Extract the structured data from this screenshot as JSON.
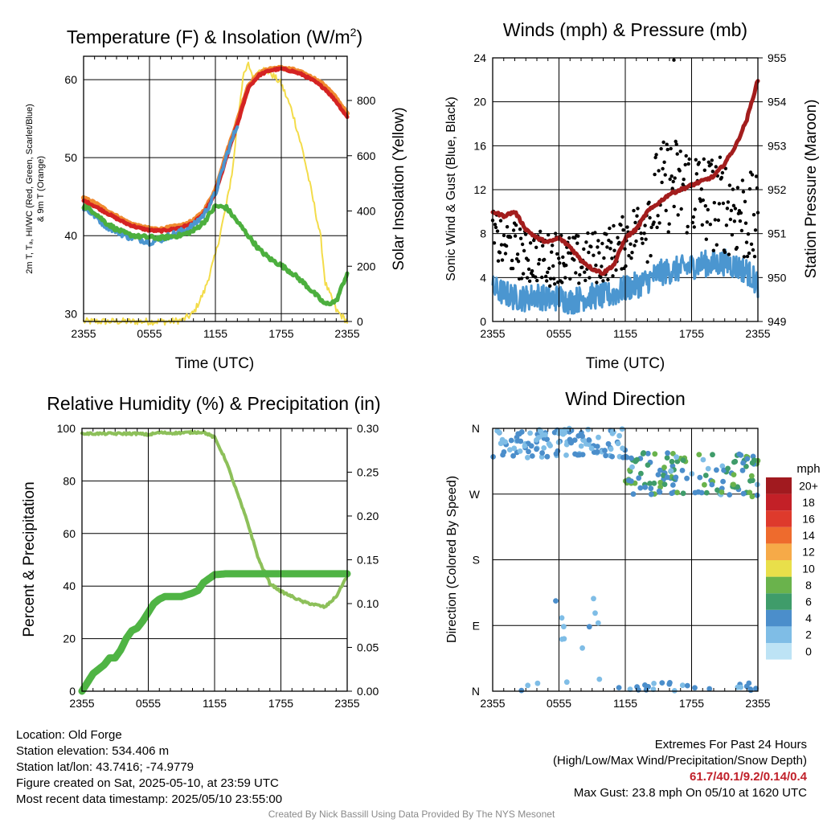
{
  "chart_data": [
    {
      "id": "temp",
      "type": "line",
      "title": "Temperature (F) & Insolation (W/m²)",
      "title_main": "Temperature (F) & Insolation (W/m",
      "title_sup": "2",
      "title_end": ")",
      "xlabel": "Time (UTC)",
      "ylabel_lines": [
        "2m T, Tₐ, HI/WC (Red, Green, Scarlet/Blue)",
        "& 9m T (Orange)"
      ],
      "ylabel_right": "Solar Insolation (Yellow)",
      "xticks": [
        "2355",
        "0555",
        "1155",
        "1755",
        "2355"
      ],
      "yticks": [
        30,
        40,
        50,
        60
      ],
      "yticks_right": [
        0,
        200,
        400,
        600,
        800
      ],
      "ylim": [
        29,
        63
      ],
      "ylim_right": [
        0,
        960
      ],
      "grid": true,
      "series": [
        {
          "color": "#f08a30",
          "x": [
            0,
            1,
            2,
            3,
            4,
            5,
            6,
            7,
            8,
            9,
            10,
            11,
            12,
            13,
            14,
            15,
            16,
            17,
            18,
            19,
            20,
            21,
            22,
            23,
            24
          ],
          "values": [
            44.8,
            44.2,
            43.3,
            42.5,
            41.7,
            41.2,
            40.9,
            40.8,
            41.1,
            41.3,
            41.9,
            43.2,
            45.8,
            50.4,
            54.6,
            59.2,
            60.8,
            61.4,
            61.5,
            61.3,
            60.8,
            60.1,
            59.2,
            57.6,
            55.6
          ]
        },
        {
          "color": "#d42323",
          "x": [
            0,
            1,
            2,
            3,
            4,
            5,
            6,
            7,
            8,
            9,
            10,
            11,
            12,
            13,
            14,
            15,
            16,
            17,
            18,
            19,
            20,
            21,
            22,
            23,
            24
          ],
          "values": [
            44.5,
            43.8,
            43.0,
            42.2,
            41.5,
            41.0,
            40.7,
            40.6,
            40.8,
            41.1,
            41.6,
            42.9,
            45.4,
            50.0,
            54.3,
            59.0,
            60.6,
            61.2,
            61.4,
            61.1,
            60.6,
            59.8,
            58.8,
            57.2,
            55.2
          ]
        },
        {
          "color": "#4b96d0",
          "x": [
            0,
            1,
            2,
            3,
            4,
            5,
            6,
            7,
            8,
            9,
            10,
            11,
            12,
            13,
            14
          ],
          "values": [
            43.6,
            42.6,
            41.3,
            40.6,
            39.9,
            39.6,
            39.2,
            39.5,
            40.1,
            40.6,
            41.3,
            42.8,
            45.4,
            50.2,
            54.2
          ]
        },
        {
          "color": "#4caf3e",
          "x": [
            0,
            1,
            2,
            3,
            4,
            5,
            6,
            7,
            8,
            9,
            10,
            11,
            12,
            13,
            14,
            15,
            16,
            17,
            18,
            19,
            20,
            21,
            22,
            23,
            24
          ],
          "values": [
            43.8,
            43.0,
            41.7,
            40.8,
            40.2,
            39.9,
            39.8,
            39.7,
            39.9,
            40.1,
            40.6,
            41.8,
            43.8,
            43.6,
            41.8,
            40.0,
            38.2,
            37.0,
            36.2,
            35.2,
            34.0,
            32.6,
            31.2,
            31.6,
            35.2
          ]
        },
        {
          "color": "#f3dc4a",
          "x": [
            0,
            8,
            9,
            10,
            11,
            12,
            13,
            13.6,
            14,
            14.5,
            15,
            15.6,
            16,
            17,
            18,
            19,
            20,
            21,
            21.6,
            22,
            23,
            24
          ],
          "values": [
            0,
            0,
            5,
            30,
            110,
            240,
            420,
            560,
            720,
            880,
            930,
            870,
            920,
            900,
            860,
            760,
            610,
            420,
            300,
            140,
            40,
            0
          ]
        }
      ]
    },
    {
      "id": "wind",
      "type": "line",
      "title": "Winds (mph) & Pressure (mb)",
      "xlabel": "Time (UTC)",
      "ylabel": "Sonic Wind & Gust (Blue, Black)",
      "ylabel_right": "Station Pressure (Maroon)",
      "xticks": [
        "2355",
        "0555",
        "1155",
        "1755",
        "2355"
      ],
      "yticks": [
        0,
        4,
        8,
        12,
        16,
        20,
        24
      ],
      "yticks_right": [
        949,
        950,
        951,
        952,
        953,
        954,
        955
      ],
      "ylim": [
        0,
        24
      ],
      "ylim_right": [
        949,
        955
      ],
      "grid": true,
      "series": [
        {
          "color": "#4b96d0",
          "x": [
            0,
            1,
            2,
            3,
            4,
            5,
            6,
            7,
            8,
            9,
            10,
            11,
            12,
            13,
            14,
            15,
            16,
            17,
            18,
            19,
            20,
            21,
            22,
            23,
            24
          ],
          "values": [
            3.0,
            2.6,
            2.2,
            2.1,
            2.4,
            2.0,
            2.2,
            1.8,
            2.1,
            2.3,
            2.3,
            2.5,
            3.0,
            3.3,
            3.7,
            4.4,
            4.6,
            4.8,
            5.0,
            5.3,
            5.2,
            5.4,
            5.0,
            4.6,
            3.4
          ]
        },
        {
          "color": "#a31d1d",
          "x": [
            0,
            1,
            2,
            3,
            4,
            5,
            6,
            7,
            8,
            9,
            10,
            11,
            12,
            13,
            14,
            15,
            16,
            17,
            18,
            19,
            20,
            21,
            22,
            23,
            24
          ],
          "values": [
            951.5,
            951.4,
            951.5,
            951.1,
            950.9,
            950.8,
            950.9,
            950.7,
            950.4,
            950.2,
            950.1,
            950.3,
            950.9,
            951.1,
            951.5,
            951.7,
            951.9,
            952.0,
            952.1,
            952.2,
            952.3,
            952.6,
            953.0,
            953.6,
            954.5
          ]
        }
      ]
    },
    {
      "id": "rh",
      "type": "line",
      "title": "Relative Humidity (%) & Precipitation (in)",
      "ylabel": "Percent & Precipitation",
      "xticks": [
        "2355",
        "0555",
        "1155",
        "1755",
        "2355"
      ],
      "yticks": [
        0,
        20,
        40,
        60,
        80,
        100
      ],
      "yticks_right": [
        "0.00",
        "0.05",
        "0.10",
        "0.15",
        "0.20",
        "0.25",
        "0.30"
      ],
      "ylim": [
        0,
        100
      ],
      "ylim_right": [
        0,
        0.3
      ],
      "grid": true,
      "series": [
        {
          "color": "#8dc05a",
          "x": [
            0,
            1,
            2,
            3,
            4,
            5,
            6,
            7,
            8,
            9,
            10,
            11,
            12,
            13,
            14,
            15,
            16,
            17,
            18,
            19,
            20,
            21,
            22,
            23,
            24
          ],
          "values": [
            98,
            98,
            98,
            98,
            98,
            98,
            97.6,
            98.4,
            98.2,
            98.3,
            98.5,
            98.6,
            96.5,
            88,
            76,
            64,
            50,
            41,
            38,
            36,
            34,
            33,
            32,
            36,
            44
          ]
        },
        {
          "color": "#4fb444",
          "x": [
            0,
            0.5,
            1,
            1.5,
            2,
            2.5,
            3,
            3.5,
            4,
            4.5,
            5,
            5.5,
            6,
            6.5,
            7,
            7.5,
            8,
            8.5,
            9,
            9.5,
            10,
            10.5,
            11,
            12,
            13,
            14,
            15,
            16,
            17,
            18,
            19,
            20,
            21,
            22,
            23,
            24
          ],
          "values": [
            0,
            0.01,
            0.02,
            0.025,
            0.03,
            0.038,
            0.038,
            0.047,
            0.06,
            0.069,
            0.072,
            0.08,
            0.09,
            0.1,
            0.105,
            0.108,
            0.108,
            0.108,
            0.108,
            0.11,
            0.112,
            0.115,
            0.124,
            0.133,
            0.134,
            0.134,
            0.134,
            0.134,
            0.134,
            0.134,
            0.134,
            0.134,
            0.134,
            0.134,
            0.134,
            0.134
          ]
        }
      ]
    },
    {
      "id": "dir",
      "type": "scatter",
      "title": "Wind Direction",
      "ylabel": "Direction (Colored By Speed)",
      "xticks": [
        "2355",
        "0555",
        "1155",
        "1755",
        "2355"
      ],
      "yticks": [
        "N",
        "E",
        "S",
        "W",
        "N"
      ],
      "ylim": [
        0,
        360
      ],
      "colorbar_title": "mph",
      "colorbar_labels": [
        "0",
        "2",
        "4",
        "6",
        "8",
        "10",
        "12",
        "14",
        "16",
        "18",
        "20+"
      ],
      "colorbar_colors": [
        "#bde3f5",
        "#7fbde6",
        "#4b8ecb",
        "#3f9c6a",
        "#6ab34c",
        "#e9df4a",
        "#f6aa48",
        "#ee6b2d",
        "#de3a2c",
        "#c32027",
        "#a11a1f"
      ]
    }
  ],
  "info": {
    "location": "Location: Old Forge",
    "elevation": "Station elevation: 534.406 m",
    "latlon": "Station lat/lon: 43.7416; -74.9779",
    "created": "Figure created on Sat, 2025-05-10, at 23:59 UTC",
    "recent": "Most recent data timestamp: 2025/05/10 23:55:00",
    "extremes_title": "Extremes For Past 24 Hours",
    "extremes_subtitle": "(High/Low/Max Wind/Precipitation/Snow Depth)",
    "extremes_values": "61.7/40.1/9.2/0.14/0.4",
    "max_gust": "Max Gust: 23.8 mph On 05/10 at 1620 UTC",
    "credit": "Created By Nick Bassill Using Data Provided By The NYS Mesonet"
  },
  "colors": {
    "grid": "#000000",
    "extremes": "#c0202a",
    "credit": "#8a8a8a"
  }
}
